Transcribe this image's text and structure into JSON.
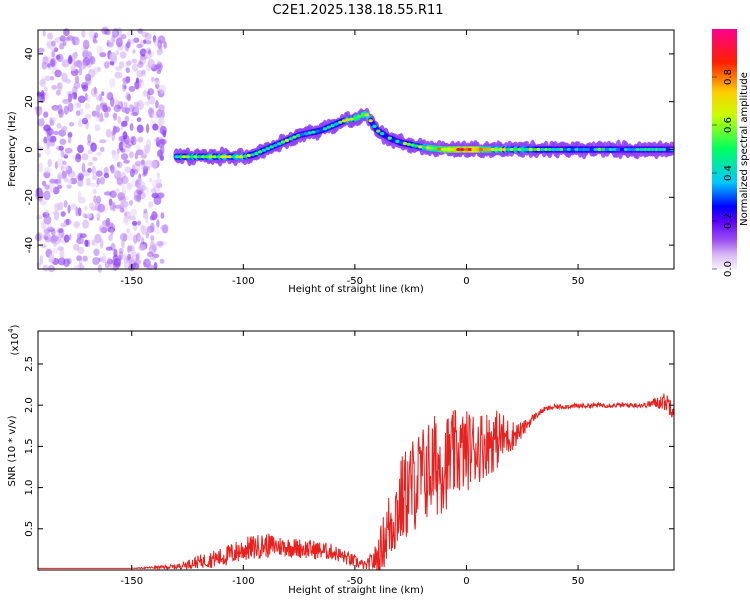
{
  "page_title": "C2E1.2025.138.18.55.R11",
  "colors": {
    "snr_line": "#e8201e",
    "frame": "#000000",
    "colormap": [
      "#f7f2fb",
      "#d9b8f5",
      "#9b4ff0",
      "#5a00ff",
      "#0000ff",
      "#00c8ff",
      "#00ff60",
      "#c8ff00",
      "#ffcc00",
      "#ff2000",
      "#ff0090"
    ]
  },
  "chart_data": [
    {
      "type": "heatmap",
      "title": "C2E1.2025.138.18.55.R11",
      "xlabel": "Height of straight line (km)",
      "ylabel": "Frequency (Hz)",
      "xlim": [
        -192,
        93
      ],
      "ylim": [
        -50,
        50
      ],
      "xticks": [
        -150,
        -100,
        -50,
        0,
        50
      ],
      "xtick_labels": [
        "-150",
        "-100",
        "-50",
        "0",
        "50"
      ],
      "yticks": [
        -40,
        -20,
        0,
        20,
        40
      ],
      "ytick_labels": [
        "-40",
        "-20",
        "0",
        "20",
        "40"
      ],
      "colorbar": {
        "label": "Normalized spectral amplitude",
        "range": [
          0,
          1
        ],
        "ticks": [
          0.0,
          0.2,
          0.4,
          0.6,
          0.8
        ],
        "tick_labels": [
          "0.0",
          "0.2",
          "0.4",
          "0.6",
          "0.8"
        ]
      },
      "ridge": [
        {
          "x": -130,
          "f": -3,
          "a": 0.55
        },
        {
          "x": -120,
          "f": -3,
          "a": 0.6
        },
        {
          "x": -110,
          "f": -3,
          "a": 0.62
        },
        {
          "x": -100,
          "f": -3,
          "a": 0.6
        },
        {
          "x": -95,
          "f": -2,
          "a": 0.55
        },
        {
          "x": -90,
          "f": 0,
          "a": 0.5
        },
        {
          "x": -85,
          "f": 2,
          "a": 0.5
        },
        {
          "x": -80,
          "f": 4,
          "a": 0.55
        },
        {
          "x": -75,
          "f": 6,
          "a": 0.5
        },
        {
          "x": -70,
          "f": 7,
          "a": 0.45
        },
        {
          "x": -65,
          "f": 8,
          "a": 0.5
        },
        {
          "x": -60,
          "f": 10,
          "a": 0.55
        },
        {
          "x": -55,
          "f": 12,
          "a": 0.6
        },
        {
          "x": -50,
          "f": 13,
          "a": 0.65
        },
        {
          "x": -45,
          "f": 15,
          "a": 0.7
        },
        {
          "x": -40,
          "f": 8,
          "a": 0.5
        },
        {
          "x": -35,
          "f": 5,
          "a": 0.45
        },
        {
          "x": -30,
          "f": 3,
          "a": 0.5
        },
        {
          "x": -25,
          "f": 2,
          "a": 0.5
        },
        {
          "x": -20,
          "f": 1,
          "a": 0.6
        },
        {
          "x": -10,
          "f": 0,
          "a": 0.75
        },
        {
          "x": 0,
          "f": 0,
          "a": 0.85
        },
        {
          "x": 10,
          "f": 0,
          "a": 0.7
        },
        {
          "x": 20,
          "f": 0,
          "a": 0.6
        },
        {
          "x": 40,
          "f": 0,
          "a": 0.5
        },
        {
          "x": 60,
          "f": 0,
          "a": 0.48
        },
        {
          "x": 80,
          "f": 0,
          "a": 0.46
        },
        {
          "x": 92,
          "f": 0,
          "a": 0.45
        }
      ]
    },
    {
      "type": "line",
      "xlabel": "Height of straight line (km)",
      "ylabel": "SNR (10 * v/v)",
      "y_multiplier": "(x10",
      "y_multiplier_exp": "4",
      "y_multiplier_close": ")",
      "xlim": [
        -192,
        93
      ],
      "ylim": [
        0,
        2.9
      ],
      "xticks": [
        -150,
        -100,
        -50,
        0,
        50
      ],
      "xtick_labels": [
        "-150",
        "-100",
        "-50",
        "0",
        "50"
      ],
      "yticks": [
        0.5,
        1.0,
        1.5,
        2.0,
        2.5
      ],
      "ytick_labels": [
        "0.5",
        "1.0",
        "1.5",
        "2.0",
        "2.5"
      ],
      "series": [
        {
          "x": [
            -192,
            -170,
            -150,
            -130,
            -120,
            -110,
            -100,
            -90,
            -80,
            -70,
            -60,
            -50,
            -45,
            -40,
            -35,
            -30,
            -25,
            -20,
            -15,
            -10,
            -5,
            0,
            5,
            10,
            15,
            20,
            25,
            30,
            35,
            40,
            50,
            60,
            70,
            80,
            88,
            92
          ],
          "y": [
            0.02,
            0.02,
            0.02,
            0.04,
            0.1,
            0.15,
            0.25,
            0.3,
            0.28,
            0.25,
            0.22,
            0.1,
            0.05,
            0.15,
            0.5,
            0.8,
            1.0,
            1.15,
            1.25,
            1.3,
            1.4,
            1.45,
            1.5,
            1.55,
            1.6,
            1.62,
            1.7,
            1.85,
            1.95,
            1.98,
            1.99,
            2.0,
            2.0,
            2.0,
            2.05,
            2.0
          ],
          "noise": [
            0,
            0,
            0,
            0.03,
            0.08,
            0.12,
            0.15,
            0.15,
            0.12,
            0.12,
            0.1,
            0.08,
            0.05,
            0.2,
            0.45,
            0.55,
            0.6,
            0.6,
            0.65,
            0.6,
            0.55,
            0.5,
            0.45,
            0.4,
            0.35,
            0.2,
            0.1,
            0.05,
            0.03,
            0.03,
            0.03,
            0.03,
            0.03,
            0.03,
            0.1,
            0.15
          ]
        }
      ]
    }
  ]
}
